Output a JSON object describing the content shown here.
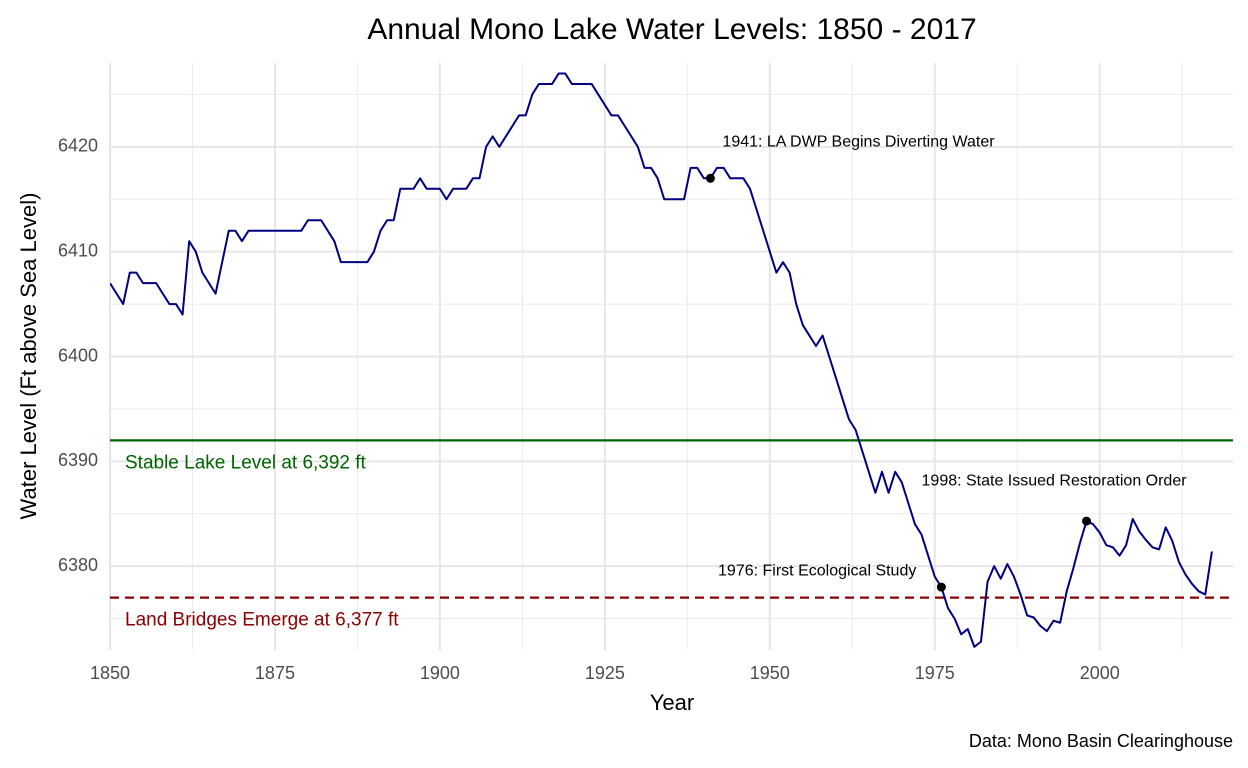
{
  "chart_data": {
    "type": "line",
    "title": "Annual Mono Lake Water Levels: 1850 - 2017",
    "x_label": "Year",
    "y_label": "Water Level (Ft above Sea Level)",
    "caption": "Data: Mono Basin Clearinghouse",
    "x": [
      1850,
      1851,
      1852,
      1853,
      1854,
      1855,
      1856,
      1857,
      1858,
      1859,
      1860,
      1861,
      1862,
      1863,
      1864,
      1865,
      1866,
      1867,
      1868,
      1869,
      1870,
      1871,
      1872,
      1873,
      1874,
      1875,
      1876,
      1877,
      1878,
      1879,
      1880,
      1881,
      1882,
      1883,
      1884,
      1885,
      1886,
      1887,
      1888,
      1889,
      1890,
      1891,
      1892,
      1893,
      1894,
      1895,
      1896,
      1897,
      1898,
      1899,
      1900,
      1901,
      1902,
      1903,
      1904,
      1905,
      1906,
      1907,
      1908,
      1909,
      1910,
      1911,
      1912,
      1913,
      1914,
      1915,
      1916,
      1917,
      1918,
      1919,
      1920,
      1921,
      1922,
      1923,
      1924,
      1925,
      1926,
      1927,
      1928,
      1929,
      1930,
      1931,
      1932,
      1933,
      1934,
      1935,
      1936,
      1937,
      1938,
      1939,
      1940,
      1941,
      1942,
      1943,
      1944,
      1945,
      1946,
      1947,
      1948,
      1949,
      1950,
      1951,
      1952,
      1953,
      1954,
      1955,
      1956,
      1957,
      1958,
      1959,
      1960,
      1961,
      1962,
      1963,
      1964,
      1965,
      1966,
      1967,
      1968,
      1969,
      1970,
      1971,
      1972,
      1973,
      1974,
      1975,
      1976,
      1977,
      1978,
      1979,
      1980,
      1981,
      1982,
      1983,
      1984,
      1985,
      1986,
      1987,
      1988,
      1989,
      1990,
      1991,
      1992,
      1993,
      1994,
      1995,
      1996,
      1997,
      1998,
      1999,
      2000,
      2001,
      2002,
      2003,
      2004,
      2005,
      2006,
      2007,
      2008,
      2009,
      2010,
      2011,
      2012,
      2013,
      2014,
      2015,
      2016,
      2017
    ],
    "series": [
      {
        "name": "Water Level",
        "color": "#000080",
        "values": [
          6407,
          6406,
          6405,
          6408,
          6408,
          6407,
          6407,
          6407,
          6406,
          6405,
          6405,
          6404,
          6411,
          6410,
          6408,
          6407,
          6406,
          6409,
          6412,
          6412,
          6411,
          6412,
          6412,
          6412,
          6412,
          6412,
          6412,
          6412,
          6412,
          6412,
          6413,
          6413,
          6413,
          6412,
          6411,
          6409,
          6409,
          6409,
          6409,
          6409,
          6410,
          6412,
          6413,
          6413,
          6416,
          6416,
          6416,
          6417,
          6416,
          6416,
          6416,
          6415,
          6416,
          6416,
          6416,
          6417,
          6417,
          6420,
          6421,
          6420,
          6421,
          6422,
          6423,
          6423,
          6425,
          6426,
          6426,
          6426,
          6427,
          6427,
          6426,
          6426,
          6426,
          6426,
          6425,
          6424,
          6423,
          6423,
          6422,
          6421,
          6420,
          6418,
          6418,
          6417,
          6415,
          6415,
          6415,
          6415,
          6418,
          6418,
          6417,
          6417,
          6418,
          6418,
          6417,
          6417,
          6417,
          6416,
          6414,
          6412,
          6410,
          6408,
          6409,
          6408,
          6405,
          6403,
          6402,
          6401,
          6402,
          6400,
          6398,
          6396,
          6394,
          6393,
          6391,
          6389,
          6387,
          6389,
          6387,
          6389,
          6388,
          6386,
          6384,
          6383,
          6381,
          6379,
          6378,
          6376,
          6375,
          6373.5,
          6374,
          6372.3,
          6372.8,
          6378.5,
          6380,
          6378.8,
          6380.2,
          6379,
          6377.3,
          6375.3,
          6375.1,
          6374.3,
          6373.8,
          6374.8,
          6374.6,
          6377.6,
          6379.8,
          6382.2,
          6384.3,
          6384,
          6383.2,
          6382,
          6381.8,
          6381,
          6382,
          6384.5,
          6383.3,
          6382.5,
          6381.8,
          6381.6,
          6383.7,
          6382.4,
          6380.4,
          6379.2,
          6378.3,
          6377.6,
          6377.3,
          6381.4
        ]
      }
    ],
    "xlim": [
      1850,
      2020.2
    ],
    "ylim": [
      6372,
      6428
    ],
    "xticks": [
      1850,
      1875,
      1900,
      1925,
      1950,
      1975,
      2000
    ],
    "yticks": [
      6380,
      6390,
      6400,
      6410,
      6420
    ],
    "grid": true,
    "hlines": [
      {
        "value": 6392,
        "label": "Stable Lake Level at 6,392 ft",
        "color": "#006400",
        "style": "solid"
      },
      {
        "value": 6377,
        "label": "Land Bridges Emerge at 6,377 ft",
        "color": "#8b0000",
        "style": "dashed"
      }
    ],
    "annotations": [
      {
        "x": 1941,
        "y": 6417,
        "label": "1941: LA DWP Begins Diverting Water"
      },
      {
        "x": 1976,
        "y": 6378,
        "label": "1976: First Ecological Study"
      },
      {
        "x": 1998,
        "y": 6384.3,
        "label": "1998: State Issued Restoration Order"
      }
    ]
  }
}
